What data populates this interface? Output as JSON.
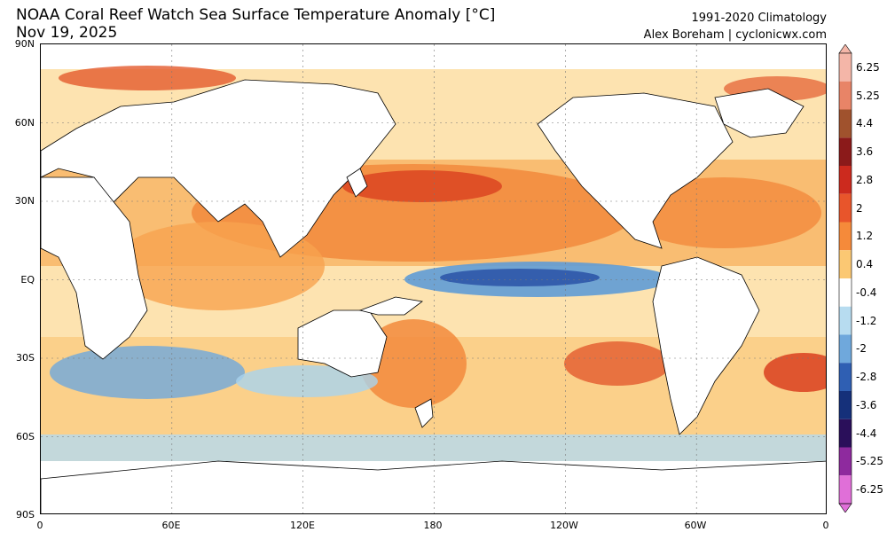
{
  "header": {
    "title": "NOAA Coral Reef Watch Sea Surface Temperature Anomaly [°C]",
    "date": "Nov 19, 2025",
    "climatology": "1991-2020 Climatology",
    "credit": "Alex Boreham | cyclonicwx.com"
  },
  "axes": {
    "lat_labels": [
      "90N",
      "60N",
      "30N",
      "EQ",
      "30S",
      "60S",
      "90S"
    ],
    "lon_labels": [
      "0",
      "60E",
      "120E",
      "180",
      "120W",
      "60W",
      "0"
    ]
  },
  "colorbar": {
    "labels": [
      "6.25",
      "5.25",
      "4.4",
      "3.6",
      "2.8",
      "2",
      "1.2",
      "0.4",
      "-0.4",
      "-1.2",
      "-2",
      "-2.8",
      "-3.6",
      "-4.4",
      "-5.25",
      "-6.25"
    ],
    "colors": [
      "#f4b6a8",
      "#e88467",
      "#a0522d",
      "#8b1a1a",
      "#cc2a1e",
      "#e8552b",
      "#f58a3a",
      "#fbc873",
      "#ffffff",
      "#b7dcf0",
      "#6fa8dc",
      "#2f5fb3",
      "#15307a",
      "#2a0f5a",
      "#8e2a9e",
      "#e06fd8"
    ]
  },
  "palette": {
    "ocean_warm_strong": "#e35a2d",
    "ocean_warm": "#f59a45",
    "ocean_warm_light": "#fbd08a",
    "ocean_cool_light": "#a9d3ee",
    "ocean_cool": "#5f9bd6",
    "ocean_cool_strong": "#2d57a8",
    "land": "#ffffff"
  }
}
